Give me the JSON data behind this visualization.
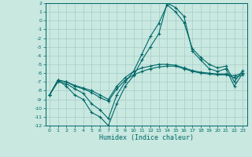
{
  "background_color": "#c8e8e0",
  "grid_color": "#a8ccc8",
  "line_color": "#006868",
  "xlabel": "Humidex (Indice chaleur)",
  "xlim": [
    -0.5,
    23.5
  ],
  "ylim": [
    -12,
    2
  ],
  "xticks": [
    0,
    1,
    2,
    3,
    4,
    5,
    6,
    7,
    8,
    9,
    10,
    11,
    12,
    13,
    14,
    15,
    16,
    17,
    18,
    19,
    20,
    21,
    22,
    23
  ],
  "yticks": [
    2,
    1,
    0,
    -1,
    -2,
    -3,
    -4,
    -5,
    -6,
    -7,
    -8,
    -9,
    -10,
    -11,
    -12
  ],
  "line1_x": [
    0,
    1,
    2,
    3,
    4,
    5,
    6,
    7,
    8,
    9,
    10,
    11,
    12,
    13,
    14,
    15,
    16,
    17,
    18,
    19,
    20,
    21,
    22,
    23
  ],
  "line1_y": [
    -8.5,
    -6.8,
    -7.5,
    -8.5,
    -9.0,
    -10.5,
    -11.0,
    -12.0,
    -9.5,
    -7.5,
    -6.3,
    -4.5,
    -3.0,
    -1.5,
    2.0,
    1.5,
    0.5,
    -3.5,
    -4.5,
    -5.5,
    -5.8,
    -5.5,
    -7.5,
    -6.0
  ],
  "line2_x": [
    0,
    1,
    2,
    3,
    4,
    5,
    6,
    7,
    8,
    9,
    10,
    11,
    12,
    13,
    14,
    15,
    16,
    17,
    18,
    19,
    20,
    21,
    22,
    23
  ],
  "line2_y": [
    -8.5,
    -7.0,
    -7.2,
    -7.8,
    -8.3,
    -9.5,
    -10.2,
    -11.2,
    -8.5,
    -7.0,
    -5.8,
    -3.8,
    -1.8,
    -0.3,
    1.8,
    1.0,
    -0.2,
    -3.2,
    -4.2,
    -5.0,
    -5.4,
    -5.2,
    -7.0,
    -5.7
  ],
  "line3_x": [
    0,
    1,
    2,
    3,
    4,
    5,
    6,
    7,
    8,
    9,
    10,
    11,
    12,
    13,
    14,
    15,
    16,
    17,
    18,
    19,
    20,
    21,
    22,
    23
  ],
  "line3_y": [
    -8.5,
    -6.8,
    -7.0,
    -7.5,
    -7.8,
    -8.2,
    -8.8,
    -9.2,
    -7.8,
    -6.8,
    -6.2,
    -5.8,
    -5.5,
    -5.3,
    -5.2,
    -5.2,
    -5.5,
    -5.8,
    -6.0,
    -6.1,
    -6.2,
    -6.2,
    -6.5,
    -6.2
  ],
  "line4_x": [
    0,
    1,
    2,
    3,
    4,
    5,
    6,
    7,
    8,
    9,
    10,
    11,
    12,
    13,
    14,
    15,
    16,
    17,
    18,
    19,
    20,
    21,
    22,
    23
  ],
  "line4_y": [
    -8.5,
    -6.8,
    -7.0,
    -7.4,
    -7.7,
    -8.0,
    -8.5,
    -9.0,
    -7.5,
    -6.5,
    -5.8,
    -5.4,
    -5.2,
    -5.0,
    -5.0,
    -5.1,
    -5.4,
    -5.7,
    -5.9,
    -6.0,
    -6.1,
    -6.1,
    -6.3,
    -6.0
  ]
}
